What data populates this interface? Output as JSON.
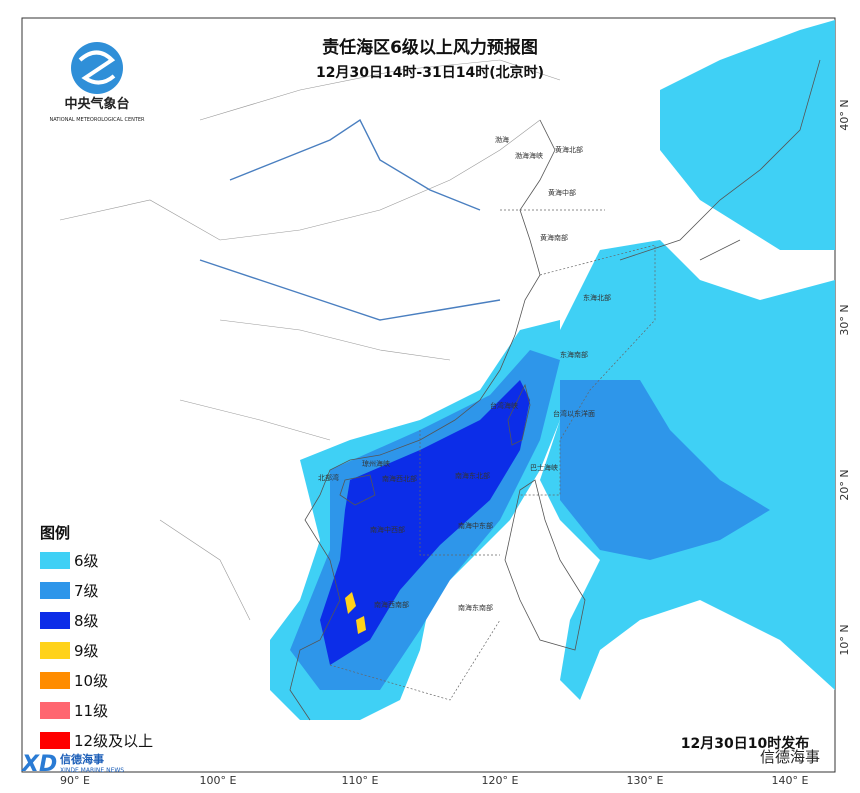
{
  "header": {
    "title": "责任海区6级以上风力预报图",
    "subtitle": "12月30日14时-31日14时(北京时)"
  },
  "logo": {
    "name": "中央气象台",
    "english": "NATIONAL METEOROLOGICAL CENTER"
  },
  "legend": {
    "title": "图例",
    "items": [
      {
        "label": "6级",
        "color": "#3fd0f5"
      },
      {
        "label": "7级",
        "color": "#2e96ea"
      },
      {
        "label": "8级",
        "color": "#0c2de8"
      },
      {
        "label": "9级",
        "color": "#ffd21a"
      },
      {
        "label": "10级",
        "color": "#ff8c00"
      },
      {
        "label": "11级",
        "color": "#ff6670"
      },
      {
        "label": "12级及以上",
        "color": "#ff0000"
      }
    ]
  },
  "issued": "12月30日10时发布",
  "watermark": {
    "name": "信德海事",
    "brand": "XINDE MARINE NEWS"
  },
  "axes": {
    "lon_labels": [
      "90° E",
      "100° E",
      "110° E",
      "120° E",
      "130° E",
      "140° E"
    ],
    "lat_labels": [
      "10° N",
      "20° N",
      "30° N",
      "40° N"
    ]
  },
  "sea_areas": [
    "渤海",
    "渤海海峡",
    "黄海北部",
    "黄海中部",
    "黄海南部",
    "东海北部",
    "东海南部",
    "台湾海峡",
    "台湾以东洋面",
    "巴士海峡",
    "北部湾",
    "琼州海峡",
    "南海西北部",
    "南海东北部",
    "南海中西部",
    "南海中东部",
    "南海西南部",
    "南海东南部"
  ]
}
